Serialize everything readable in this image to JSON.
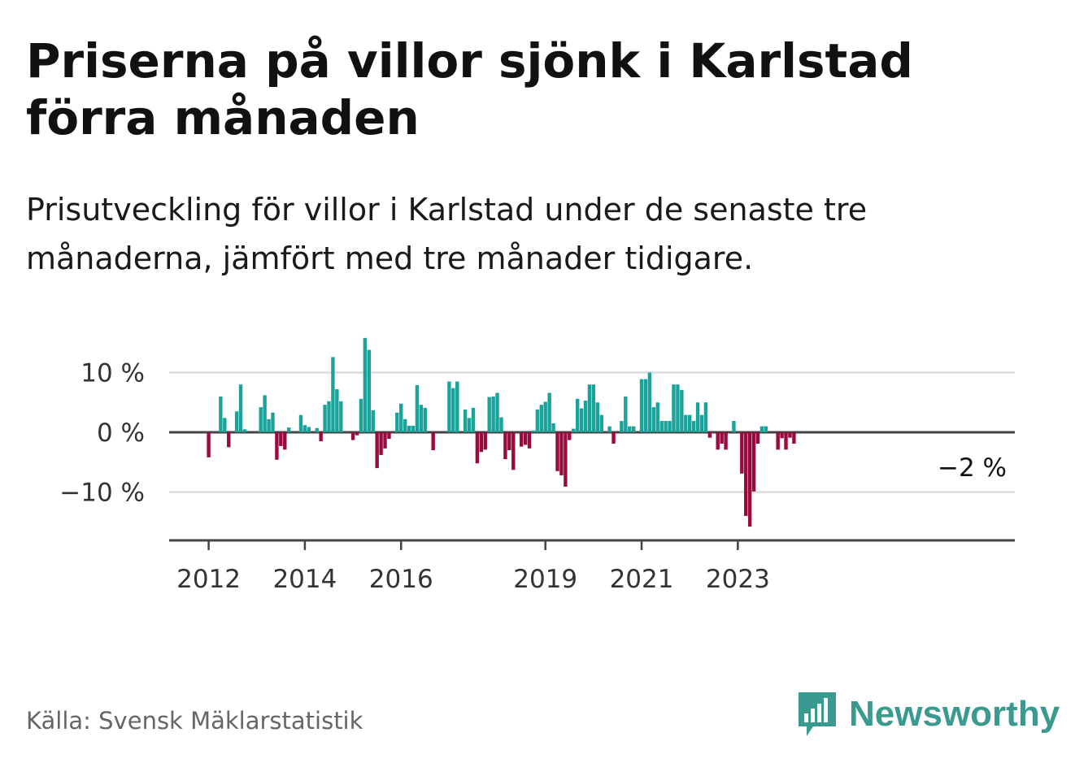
{
  "title": "Priserna på villor sjönk i Karlstad förra månaden",
  "subtitle": "Prisutveckling för villor i Karlstad under de senaste tre månaderna, jämfört med tre månader tidigare.",
  "source": "Källa: Svensk Mäklarstatistik",
  "brand": "Newsworthy",
  "colors": {
    "positive": "#1aa39a",
    "negative": "#970b3f",
    "grid": "#dcdcdc",
    "axis": "#444444",
    "brand": "#3a9a90"
  },
  "chart_data": {
    "type": "bar",
    "title": "",
    "xlabel": "",
    "ylabel": "",
    "ylim": [
      -18,
      16
    ],
    "y_ticks": [
      {
        "value": 10,
        "label": "10 %"
      },
      {
        "value": 0,
        "label": "0 %"
      },
      {
        "value": -10,
        "label": "−10 %"
      }
    ],
    "x_ticks": [
      "2012",
      "2014",
      "2016",
      "2019",
      "2021",
      "2023"
    ],
    "start": "2011-01",
    "grid": true,
    "last_label": "−2 %",
    "values": [
      null,
      null,
      null,
      null,
      null,
      null,
      null,
      null,
      null,
      null,
      null,
      null,
      -4.2,
      0,
      0,
      6,
      2.4,
      -2.5,
      0,
      3.5,
      8,
      0.5,
      0,
      0,
      0,
      4.2,
      6.2,
      2.2,
      3.3,
      -4.6,
      -2.3,
      -2.9,
      0.8,
      0,
      0,
      2.9,
      1.2,
      0.9,
      0,
      0.7,
      -1.5,
      4.6,
      5.2,
      12.6,
      7.2,
      5.2,
      0,
      0,
      -1.3,
      -0.5,
      5.6,
      15.8,
      13.8,
      3.7,
      -6,
      -3.8,
      -2.7,
      -1.1,
      0,
      3.3,
      4.8,
      2.2,
      1.1,
      1.1,
      7.9,
      4.6,
      4.1,
      0,
      -3,
      0,
      0,
      0,
      8.5,
      7.4,
      8.5,
      0,
      3.8,
      2.4,
      4.1,
      -5.2,
      -3.3,
      -2.9,
      5.9,
      6,
      6.6,
      2.5,
      -4.5,
      -3,
      -6.3,
      0,
      -2.4,
      -2.1,
      -2.7,
      0.3,
      3.8,
      4.6,
      5.1,
      6.6,
      1.5,
      -6.5,
      -7.2,
      -9.1,
      -1.3,
      0.6,
      5.6,
      4,
      5.3,
      8,
      8,
      5,
      2.9,
      0,
      1,
      -1.9,
      0,
      1.9,
      6,
      1,
      1,
      0,
      8.9,
      8.9,
      10,
      4.2,
      5,
      1.9,
      1.9,
      1.9,
      8,
      8,
      7.1,
      2.9,
      2.9,
      1.9,
      5,
      2.9,
      5,
      -0.9,
      0,
      -2.9,
      -1.9,
      -2.9,
      0,
      1.9,
      0,
      -6.9,
      -14,
      -15.8,
      -9.9,
      -1.9,
      1,
      1,
      0,
      0,
      -2.9,
      -1,
      -2.9,
      -0.9,
      -1.9
    ]
  }
}
